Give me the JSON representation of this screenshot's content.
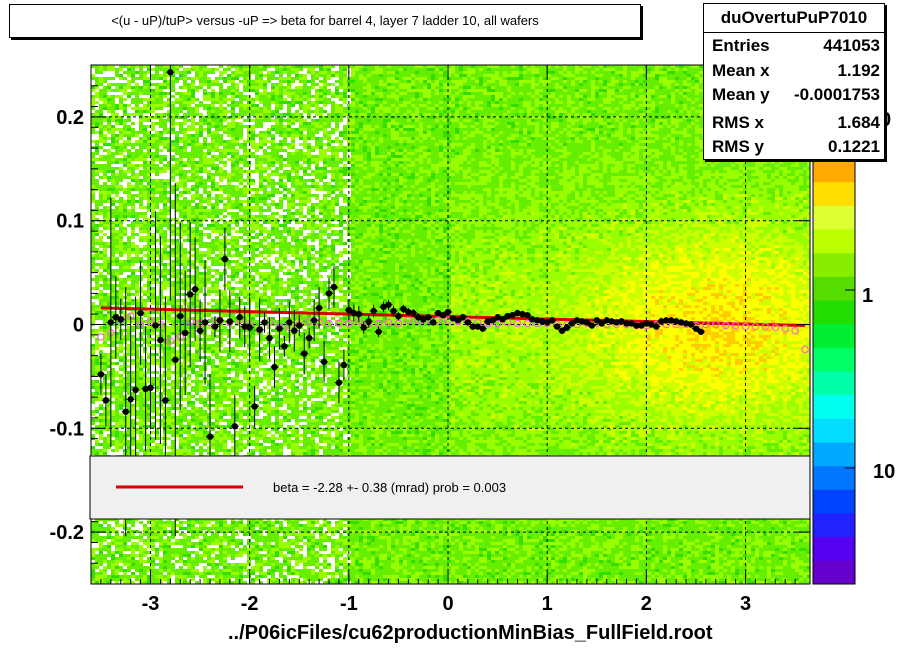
{
  "title": "<(u - uP)/tuP> versus  -uP => beta for barrel 4, layer 7 ladder 10, all wafers",
  "xlabel": "../P06icFiles/cu62productionMinBias_FullField.root",
  "stats": {
    "name": "duOvertuPuP7010",
    "entries_label": "Entries",
    "entries": "441053",
    "meanx_label": "Mean x",
    "meanx": "1.192",
    "meany_label": "Mean y",
    "meany": "-0.0001753",
    "rmsx_label": "RMS x",
    "rmsx": "1.684",
    "rmsy_label": "RMS y",
    "rmsy": "0.1221"
  },
  "legend": {
    "text": "beta =   -2.28 +-  0.38 (mrad) prob = 0.003",
    "line_color": "#dd0000"
  },
  "colorbar": {
    "tick_labels": [
      "1",
      "10"
    ],
    "clipped_label": "0",
    "colors": [
      "#6600cc",
      "#5500ee",
      "#2222ff",
      "#0044ff",
      "#0077ff",
      "#00aaff",
      "#00ddff",
      "#00ffee",
      "#00ffaa",
      "#00ff66",
      "#00ee33",
      "#22dd00",
      "#55dd00",
      "#88ee00",
      "#bbff00",
      "#ddff33",
      "#ffdd00",
      "#ffaa00"
    ]
  },
  "chart_data": {
    "type": "heatmap",
    "x_range": [
      -3.6,
      3.65
    ],
    "y_range": [
      -0.25,
      0.25
    ],
    "x_ticks": [
      -3,
      -2,
      -1,
      0,
      1,
      2,
      3
    ],
    "y_ticks": [
      -0.2,
      -0.1,
      0,
      0.1,
      0.2
    ],
    "x_tick_labels": [
      "-3",
      "-2",
      "-1",
      "0",
      "1",
      "2",
      "3"
    ],
    "y_tick_labels": [
      "-0.2",
      "-0.1",
      "0",
      "0.1",
      "0.2"
    ],
    "grid": true,
    "fit_line": {
      "x": [
        -3.5,
        3.6
      ],
      "y": [
        0.016,
        -0.001
      ],
      "color": "#dd0000"
    },
    "profile_points": {
      "x": [
        -3.5,
        -3.45,
        -3.4,
        -3.35,
        -3.3,
        -3.25,
        -3.2,
        -3.15,
        -3.1,
        -3.05,
        -3.0,
        -2.95,
        -2.9,
        -2.85,
        -2.8,
        -2.75,
        -2.7,
        -2.65,
        -2.6,
        -2.55,
        -2.5,
        -2.45,
        -2.4,
        -2.35,
        -2.3,
        -2.25,
        -2.2,
        -2.15,
        -2.1,
        -2.05,
        -2.0,
        -1.95,
        -1.9,
        -1.85,
        -1.8,
        -1.75,
        -1.7,
        -1.65,
        -1.6,
        -1.55,
        -1.5,
        -1.45,
        -1.4,
        -1.35,
        -1.3,
        -1.25,
        -1.2,
        -1.15,
        -1.1,
        -1.05,
        -1.0,
        -0.95,
        -0.9,
        -0.85,
        -0.8,
        -0.75,
        -0.7,
        -0.65,
        -0.6,
        -0.55,
        -0.5,
        -0.45,
        -0.4,
        -0.35,
        -0.3,
        -0.25,
        -0.2,
        -0.15,
        -0.1,
        -0.05,
        0.0,
        0.05,
        0.1,
        0.15,
        0.2,
        0.25,
        0.3,
        0.35,
        0.4,
        0.45,
        0.5,
        0.55,
        0.6,
        0.65,
        0.7,
        0.75,
        0.8,
        0.85,
        0.9,
        0.95,
        1.0,
        1.05,
        1.1,
        1.15,
        1.2,
        1.25,
        1.3,
        1.35,
        1.4,
        1.45,
        1.5,
        1.55,
        1.6,
        1.65,
        1.7,
        1.75,
        1.8,
        1.85,
        1.9,
        1.95,
        2.0,
        2.05,
        2.1,
        2.15,
        2.2,
        2.25,
        2.3,
        2.35,
        2.4,
        2.45,
        2.5,
        2.55,
        2.6,
        2.65,
        2.7,
        2.75,
        2.8,
        2.85,
        2.9,
        2.95,
        3.0,
        3.05,
        3.1,
        3.15,
        3.2,
        3.25,
        3.3,
        3.35,
        3.4,
        3.45,
        3.5,
        3.55
      ],
      "y": [
        -0.048,
        -0.073,
        0.002,
        0.007,
        0.005,
        -0.084,
        -0.072,
        -0.063,
        0.011,
        -0.062,
        -0.061,
        -0.001,
        -0.015,
        -0.073,
        0.243,
        -0.034,
        0.008,
        -0.008,
        0.029,
        0.034,
        -0.006,
        0.002,
        -0.108,
        -0.002,
        0.004,
        0.063,
        0.003,
        -0.098,
        0.007,
        -0.002,
        -0.003,
        -0.079,
        -0.005,
        0.002,
        -0.013,
        -0.041,
        -0.004,
        -0.021,
        0.002,
        -0.006,
        -0.001,
        -0.028,
        -0.013,
        0.004,
        0.016,
        -0.036,
        0.03,
        0.036,
        -0.056,
        -0.039,
        0.014,
        0.011,
        0.01,
        -0.003,
        0.003,
        0.013,
        -0.007,
        0.017,
        0.019,
        0.013,
        0.008,
        0.015,
        0.012,
        0.011,
        0.007,
        0.005,
        0.007,
        0.002,
        0.011,
        0.009,
        0.012,
        0.006,
        0.004,
        0.007,
        0.002,
        -0.002,
        -0.002,
        -0.004,
        0.003,
        0.004,
        0.007,
        0.005,
        0.008,
        0.009,
        0.011,
        0.01,
        0.009,
        0.005,
        0.004,
        0.003,
        0.002,
        0.004,
        -0.002,
        -0.006,
        -0.003,
        0.001,
        0.004,
        0.003,
        0.002,
        -0.001,
        0.004,
        0.001,
        0.004,
        0.003,
        0.002,
        0.003,
        0.001,
        0.001,
        -0.001,
        -0.001,
        0.001,
        0.0,
        -0.002,
        0.003,
        0.004,
        0.004,
        0.003,
        0.002,
        0.001,
        0.0,
        -0.004,
        -0.007
      ],
      "err": [
        0.02,
        0.025,
        0.12,
        0.04,
        0.02,
        0.12,
        0.08,
        0.09,
        0.05,
        0.06,
        0.04,
        0.11,
        0.1,
        0.1,
        0.22,
        0.17,
        0.09,
        0.06,
        0.07,
        0.05,
        0.03,
        0.06,
        0.06,
        0.01,
        0.03,
        0.03,
        0.03,
        0.03,
        0.02,
        0.02,
        0.03,
        0.02,
        0.03,
        0.01,
        0.02,
        0.02,
        0.02,
        0.01,
        0.02,
        0.02,
        0.01,
        0.02,
        0.01,
        0.02,
        0.02,
        0.02,
        0.015,
        0.02,
        0.02,
        0.015,
        0.01,
        0.008,
        0.008,
        0.006,
        0.006,
        0.006,
        0.005,
        0.005,
        0.005,
        0.005,
        0.004,
        0.004,
        0.004,
        0.004,
        0.004,
        0.004,
        0.003,
        0.003,
        0.003,
        0.003,
        0.003,
        0.003,
        0.003,
        0.003,
        0.003,
        0.003,
        0.003,
        0.003,
        0.003,
        0.003,
        0.003,
        0.003,
        0.003,
        0.003,
        0.003,
        0.003,
        0.003,
        0.003,
        0.003,
        0.003,
        0.003,
        0.003,
        0.003,
        0.003,
        0.003,
        0.003,
        0.003,
        0.003,
        0.003,
        0.003,
        0.003,
        0.003,
        0.003,
        0.003,
        0.003,
        0.003,
        0.003,
        0.003,
        0.003,
        0.003,
        0.003,
        0.003,
        0.003,
        0.003,
        0.003,
        0.003,
        0.003,
        0.003,
        0.003,
        0.003,
        0.003
      ]
    },
    "mean_points": {
      "x": [
        -3.5,
        -3.4,
        -3.3,
        -3.2,
        -3.1,
        -3.0,
        -2.9,
        -2.8,
        -2.7,
        -2.6,
        -2.5,
        -2.4,
        -2.3,
        -2.2,
        -2.1,
        -2.0,
        -1.9,
        -1.8,
        -1.7,
        -1.6,
        -1.5,
        -1.4,
        -1.3,
        -1.2,
        -1.1,
        -1.0,
        -0.9,
        -0.8,
        -0.7,
        -0.6,
        -0.5,
        -0.4,
        -0.3,
        -0.2,
        -0.1,
        0.0,
        0.1,
        0.2,
        0.3,
        0.4,
        0.5,
        0.6,
        0.7,
        0.8,
        0.9,
        1.0,
        1.1,
        1.2,
        1.3,
        1.4,
        1.5,
        1.6,
        1.7,
        1.8,
        1.9,
        2.0,
        2.1,
        2.2,
        2.3,
        2.4,
        2.5,
        2.6,
        2.7,
        2.8,
        2.9,
        3.0,
        3.1,
        3.2,
        3.3,
        3.4,
        3.5,
        3.6
      ],
      "y": [
        -0.012,
        -0.008,
        0.005,
        0.008,
        0.0,
        0.003,
        0.0,
        -0.016,
        -0.012,
        0.003,
        0.001,
        0.002,
        0.004,
        0.002,
        0.004,
        0.0,
        -0.005,
        0.002,
        -0.003,
        -0.003,
        0.0,
        0.003,
        0.002,
        0.001,
        0.001,
        0.001,
        0.003,
        0.0,
        0.001,
        0.002,
        0.001,
        0.004,
        0.004,
        0.005,
        0.004,
        0.004,
        0.003,
        0.003,
        0.002,
        0.001,
        0.001,
        0.002,
        0.001,
        0.001,
        0.001,
        0.001,
        0.0,
        0.0,
        0.0,
        0.001,
        0.001,
        0.0,
        0.0,
        0.0,
        -0.001,
        -0.001,
        0.0,
        0.0,
        0.0,
        0.0,
        -0.001,
        0.0,
        0.0,
        -0.001,
        -0.001,
        -0.002,
        -0.002,
        -0.002,
        -0.003,
        -0.004,
        -0.006,
        -0.024
      ]
    }
  }
}
